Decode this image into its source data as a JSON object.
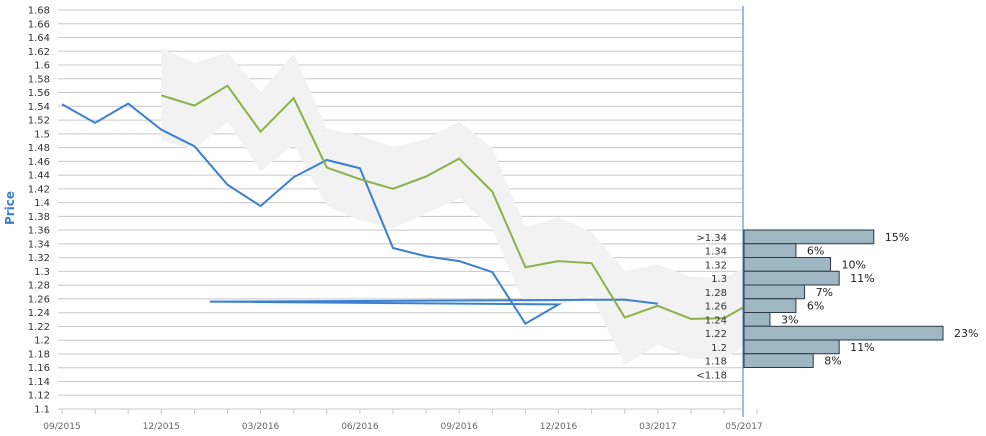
{
  "chart_data": {
    "type": "line",
    "ylabel": "Price",
    "ylim": [
      1.1,
      1.68
    ],
    "yticks": [
      "1.1",
      "1.12",
      "1.14",
      "1.16",
      "1.18",
      "1.2",
      "1.22",
      "1.24",
      "1.26",
      "1.28",
      "1.3",
      "1.32",
      "1.34",
      "1.36",
      "1.38",
      "1.4",
      "1.42",
      "1.44",
      "1.46",
      "1.48",
      "1.5",
      "1.52",
      "1.54",
      "1.56",
      "1.58",
      "1.6",
      "1.62",
      "1.64",
      "1.66",
      "1.68"
    ],
    "xticks": [
      "09/2015",
      "12/2015",
      "03/2016",
      "06/2016",
      "09/2016",
      "12/2016",
      "03/2017",
      "05/2017"
    ],
    "grid": true,
    "colors": {
      "historical": "#3a7fd0",
      "forecast": "#8db04a",
      "band": "#f2f2f2",
      "hist_bar": "#9fb6c3",
      "axis": "#3a7fd0"
    },
    "series": [
      {
        "role": "historical",
        "x": [
          "2015-09",
          "2015-10",
          "2015-11",
          "2015-12",
          "2016-01",
          "2016-02",
          "2016-03",
          "2016-04",
          "2016-05",
          "2016-06",
          "2016-07",
          "2016-08",
          "2016-09",
          "2016-10",
          "2016-11",
          "2016-12",
          "2016-01-15",
          "2017-02",
          "2017-03"
        ],
        "y": [
          1.543,
          1.516,
          1.544,
          1.506,
          1.482,
          1.426,
          1.395,
          1.437,
          1.462,
          1.45,
          1.334,
          1.322,
          1.315,
          1.299,
          1.224,
          1.252,
          1.256,
          1.259,
          1.253
        ]
      },
      {
        "role": "forecast",
        "x": [
          "2015-12",
          "2016-01",
          "2016-02",
          "2016-03",
          "2016-04",
          "2016-05",
          "2016-06",
          "2016-07",
          "2016-08",
          "2016-09",
          "2016-10",
          "2016-11",
          "2016-12",
          "2017-01",
          "2017-02",
          "2017-03",
          "2017-04",
          "2017-05",
          "2017-05-30"
        ],
        "y": [
          1.556,
          1.541,
          1.57,
          1.503,
          1.552,
          1.451,
          1.434,
          1.42,
          1.438,
          1.464,
          1.416,
          1.306,
          1.315,
          1.312,
          1.233,
          1.25,
          1.231,
          1.232,
          1.258
        ],
        "band_upper": [
          1.625,
          1.603,
          1.618,
          1.561,
          1.617,
          1.507,
          1.498,
          1.481,
          1.492,
          1.518,
          1.479,
          1.364,
          1.379,
          1.357,
          1.301,
          1.31,
          1.292,
          1.291,
          1.313
        ],
        "band_lower": [
          1.49,
          1.477,
          1.518,
          1.446,
          1.484,
          1.395,
          1.374,
          1.363,
          1.384,
          1.406,
          1.362,
          1.249,
          1.251,
          1.265,
          1.164,
          1.194,
          1.173,
          1.171,
          1.205
        ]
      }
    ],
    "distribution": {
      "labels": [
        ">1.34",
        "1.34",
        "1.32",
        "1.3",
        "1.28",
        "1.26",
        "1.24",
        "1.22",
        "1.2",
        "1.18",
        "<1.18"
      ],
      "values": [
        "15%",
        "6%",
        "10%",
        "11%",
        "7%",
        "6%",
        "3%",
        "23%",
        "11%",
        "8%",
        ""
      ]
    }
  }
}
